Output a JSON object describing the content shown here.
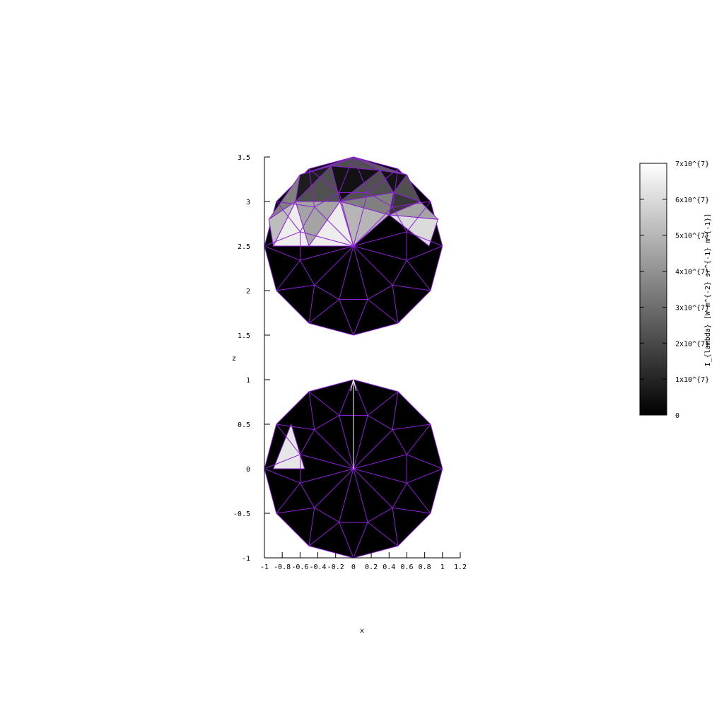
{
  "chart_data": {
    "type": "heatmap",
    "title": "",
    "xlabel": "x",
    "ylabel": "z",
    "xlim": [
      -1,
      1.2
    ],
    "ylim": [
      -1,
      3.5
    ],
    "x_ticks": [
      "-1",
      "-0.8",
      "-0.6",
      "-0.4",
      "-0.2",
      "0",
      "0.2",
      "0.4",
      "0.6",
      "0.8",
      "1",
      "1.2"
    ],
    "y_ticks": [
      "-1",
      "-0.5",
      "0",
      "0.5",
      "1",
      "1.5",
      "2",
      "2.5",
      "3",
      "3.5"
    ],
    "colorbar": {
      "label": "I_{lambda} [W m^{-2} sr^{-1} m^{-1}]",
      "range": [
        0,
        70000000
      ],
      "ticks": [
        {
          "value": 0,
          "label": "0"
        },
        {
          "value": 10000000,
          "label": "1x10^{7}"
        },
        {
          "value": 20000000,
          "label": "2x10^{7}"
        },
        {
          "value": 30000000,
          "label": "3x10^{7}"
        },
        {
          "value": 40000000,
          "label": "4x10^{7}"
        },
        {
          "value": 50000000,
          "label": "5x10^{7}"
        },
        {
          "value": 60000000,
          "label": "6x10^{7}"
        },
        {
          "value": 70000000,
          "label": "7x10^{7}"
        }
      ],
      "colormap": "gray"
    },
    "edge_color": "#8b1fd6",
    "arrow": {
      "from": [
        0,
        0
      ],
      "to": [
        0,
        1
      ]
    },
    "spheres": [
      {
        "name": "",
        "center": [
          0,
          2.5
        ],
        "triangles": [
          {
            "pts": [
              [
                -0.95,
                2.8
              ],
              [
                -0.6,
                3.3
              ],
              [
                -0.65,
                3.0
              ]
            ],
            "value": 35000000
          },
          {
            "pts": [
              [
                -0.6,
                3.3
              ],
              [
                -0.25,
                3.4
              ],
              [
                -0.65,
                3.0
              ]
            ],
            "value": 8000000
          },
          {
            "pts": [
              [
                -0.25,
                3.4
              ],
              [
                -0.15,
                3.0
              ],
              [
                -0.65,
                3.0
              ]
            ],
            "value": 22000000
          },
          {
            "pts": [
              [
                -0.6,
                3.3
              ],
              [
                0.0,
                3.5
              ],
              [
                -0.25,
                3.4
              ]
            ],
            "value": 25000000
          },
          {
            "pts": [
              [
                -0.25,
                3.4
              ],
              [
                0.0,
                3.5
              ],
              [
                0.3,
                3.35
              ]
            ],
            "value": 22000000
          },
          {
            "pts": [
              [
                -0.25,
                3.4
              ],
              [
                0.3,
                3.35
              ],
              [
                -0.15,
                3.0
              ]
            ],
            "value": 5000000
          },
          {
            "pts": [
              [
                0.0,
                3.5
              ],
              [
                0.6,
                3.3
              ],
              [
                0.3,
                3.35
              ]
            ],
            "value": 25000000
          },
          {
            "pts": [
              [
                0.3,
                3.35
              ],
              [
                0.6,
                3.3
              ],
              [
                0.45,
                3.1
              ]
            ],
            "value": 5000000
          },
          {
            "pts": [
              [
                -0.15,
                3.0
              ],
              [
                0.3,
                3.35
              ],
              [
                0.45,
                3.1
              ]
            ],
            "value": 22000000
          },
          {
            "pts": [
              [
                -0.15,
                3.0
              ],
              [
                0.45,
                3.1
              ],
              [
                0.4,
                2.85
              ]
            ],
            "value": 35000000
          },
          {
            "pts": [
              [
                0.6,
                3.3
              ],
              [
                0.75,
                3.0
              ],
              [
                0.45,
                3.1
              ]
            ],
            "value": 22000000
          },
          {
            "pts": [
              [
                0.45,
                3.1
              ],
              [
                0.75,
                3.0
              ],
              [
                0.4,
                2.85
              ]
            ],
            "value": 15000000
          },
          {
            "pts": [
              [
                0.75,
                3.0
              ],
              [
                0.95,
                2.8
              ],
              [
                0.4,
                2.85
              ]
            ],
            "value": 45000000
          },
          {
            "pts": [
              [
                0.4,
                2.85
              ],
              [
                0.95,
                2.8
              ],
              [
                0.85,
                2.5
              ]
            ],
            "value": 60000000
          },
          {
            "pts": [
              [
                -0.95,
                2.8
              ],
              [
                -0.65,
                3.0
              ],
              [
                -0.9,
                2.5
              ]
            ],
            "value": 52000000
          },
          {
            "pts": [
              [
                -0.65,
                3.0
              ],
              [
                -0.5,
                2.5
              ],
              [
                -0.9,
                2.5
              ]
            ],
            "value": 65000000
          },
          {
            "pts": [
              [
                -0.65,
                3.0
              ],
              [
                -0.15,
                3.0
              ],
              [
                -0.5,
                2.5
              ]
            ],
            "value": 45000000
          },
          {
            "pts": [
              [
                -0.15,
                3.0
              ],
              [
                0.0,
                2.5
              ],
              [
                -0.5,
                2.5
              ]
            ],
            "value": 65000000
          },
          {
            "pts": [
              [
                -0.15,
                3.0
              ],
              [
                0.4,
                2.85
              ],
              [
                0.0,
                2.5
              ]
            ],
            "value": 50000000
          }
        ]
      },
      {
        "name": "",
        "center": [
          0,
          0
        ],
        "triangles": [
          {
            "pts": [
              [
                -0.9,
                0.0
              ],
              [
                -0.7,
                0.5
              ],
              [
                -0.55,
                0.0
              ]
            ],
            "value": 63000000
          }
        ]
      }
    ]
  }
}
